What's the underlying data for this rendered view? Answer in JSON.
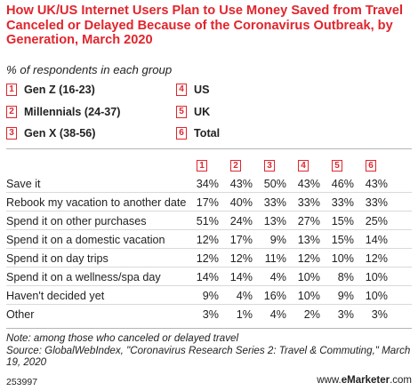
{
  "title": "How UK/US Internet Users Plan to Use Money Saved from Travel Canceled or Delayed Because of the Coronavirus Outbreak, by Generation, March 2020",
  "subtitle": "% of respondents in each group",
  "legend": [
    {
      "num": "1",
      "label": "Gen Z (16-23)"
    },
    {
      "num": "2",
      "label": "Millennials (24-37)"
    },
    {
      "num": "3",
      "label": "Gen X (38-56)"
    },
    {
      "num": "4",
      "label": "US"
    },
    {
      "num": "5",
      "label": "UK"
    },
    {
      "num": "6",
      "label": "Total"
    }
  ],
  "columns": [
    "1",
    "2",
    "3",
    "4",
    "5",
    "6"
  ],
  "rows": [
    {
      "label": "Save it",
      "values": [
        "34%",
        "43%",
        "50%",
        "43%",
        "46%",
        "43%"
      ]
    },
    {
      "label": "Rebook my vacation to another date",
      "values": [
        "17%",
        "40%",
        "33%",
        "33%",
        "33%",
        "33%"
      ]
    },
    {
      "label": "Spend it on other purchases",
      "values": [
        "51%",
        "24%",
        "13%",
        "27%",
        "15%",
        "25%"
      ]
    },
    {
      "label": "Spend it on a domestic vacation",
      "values": [
        "12%",
        "17%",
        "9%",
        "13%",
        "15%",
        "14%"
      ]
    },
    {
      "label": "Spend it on day trips",
      "values": [
        "12%",
        "12%",
        "11%",
        "12%",
        "10%",
        "12%"
      ]
    },
    {
      "label": "Spend it on a wellness/spa day",
      "values": [
        "14%",
        "14%",
        "4%",
        "10%",
        "8%",
        "10%"
      ]
    },
    {
      "label": "Haven't decided yet",
      "values": [
        "9%",
        "4%",
        "16%",
        "10%",
        "9%",
        "10%"
      ]
    },
    {
      "label": "Other",
      "values": [
        "3%",
        "1%",
        "4%",
        "2%",
        "3%",
        "3%"
      ]
    }
  ],
  "note": "Note: among those who canceled or delayed travel",
  "source": "Source: GlobalWebIndex, \"Coronavirus Research Series 2: Travel & Commuting,\" March 19, 2020",
  "footer": {
    "id": "253997",
    "site_prefix": "www.",
    "site_brand": "eMarketer",
    "site_suffix": ".com"
  },
  "colors": {
    "accent": "#e0252d",
    "text": "#222222",
    "rule": "#b5b5b5"
  },
  "chart_data": {
    "type": "table",
    "title": "How UK/US Internet Users Plan to Use Money Saved from Travel Canceled or Delayed Because of the Coronavirus Outbreak, by Generation, March 2020",
    "subtitle": "% of respondents in each group",
    "series_names": [
      "Gen Z (16-23)",
      "Millennials (24-37)",
      "Gen X (38-56)",
      "US",
      "UK",
      "Total"
    ],
    "categories": [
      "Save it",
      "Rebook my vacation to another date",
      "Spend it on other purchases",
      "Spend it on a domestic vacation",
      "Spend it on day trips",
      "Spend it on a wellness/spa day",
      "Haven't decided yet",
      "Other"
    ],
    "series": [
      {
        "name": "Gen Z (16-23)",
        "values": [
          34,
          17,
          51,
          12,
          12,
          14,
          9,
          3
        ]
      },
      {
        "name": "Millennials (24-37)",
        "values": [
          43,
          40,
          24,
          17,
          12,
          14,
          4,
          1
        ]
      },
      {
        "name": "Gen X (38-56)",
        "values": [
          50,
          33,
          13,
          9,
          11,
          4,
          16,
          4
        ]
      },
      {
        "name": "US",
        "values": [
          43,
          33,
          27,
          13,
          12,
          10,
          10,
          2
        ]
      },
      {
        "name": "UK",
        "values": [
          46,
          33,
          15,
          15,
          10,
          8,
          9,
          3
        ]
      },
      {
        "name": "Total",
        "values": [
          43,
          33,
          25,
          14,
          12,
          10,
          10,
          3
        ]
      }
    ]
  }
}
